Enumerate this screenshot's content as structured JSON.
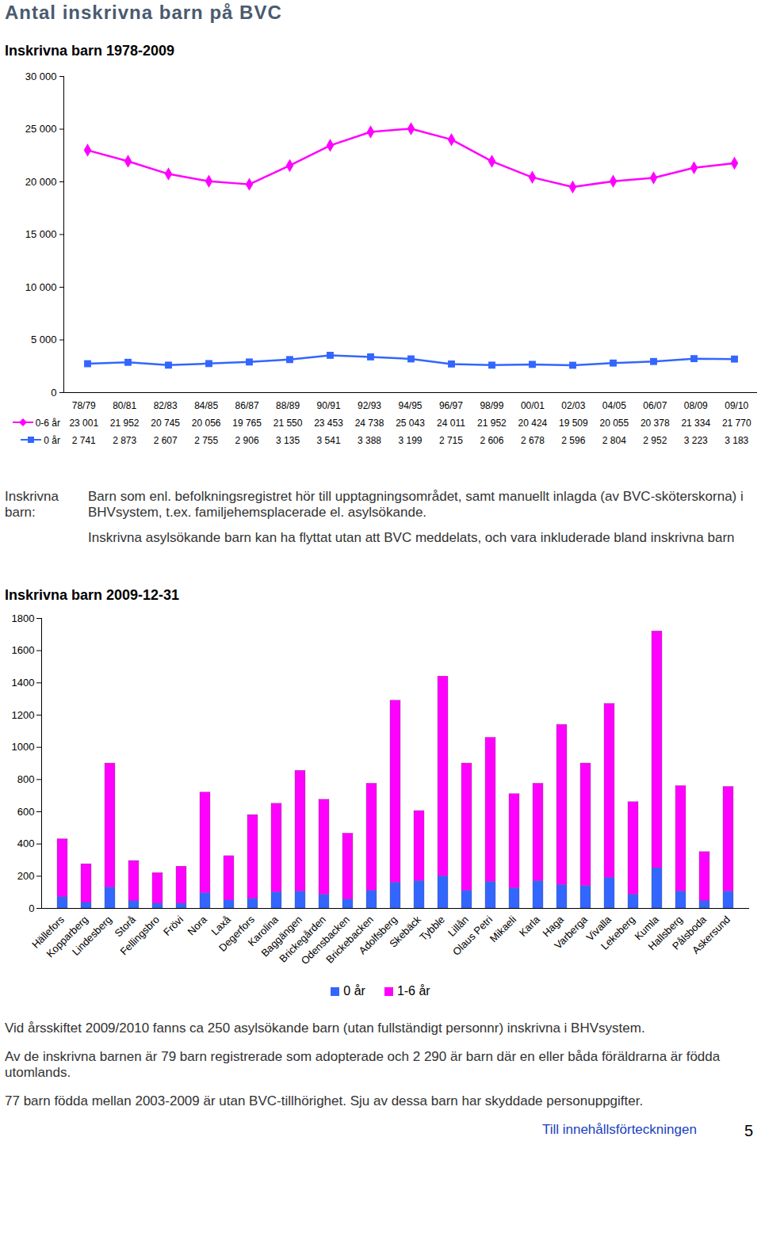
{
  "page_title": "Antal inskrivna barn på BVC",
  "chart_data": [
    {
      "type": "line",
      "title": "Inskrivna barn 1978-2009",
      "categories": [
        "78/79",
        "80/81",
        "82/83",
        "84/85",
        "86/87",
        "88/89",
        "90/91",
        "92/93",
        "94/95",
        "96/97",
        "98/99",
        "00/01",
        "02/03",
        "04/05",
        "06/07",
        "08/09",
        "09/10"
      ],
      "series": [
        {
          "name": "0-6 år",
          "color": "#ff00ff",
          "marker": "diamond",
          "values": [
            23001,
            21952,
            20745,
            20056,
            19765,
            21550,
            23453,
            24738,
            25043,
            24011,
            21952,
            20424,
            19509,
            20055,
            20378,
            21334,
            21770
          ],
          "value_labels": [
            "23 001",
            "21 952",
            "20 745",
            "20 056",
            "19 765",
            "21 550",
            "23 453",
            "24 738",
            "25 043",
            "24 011",
            "21 952",
            "20 424",
            "19 509",
            "20 055",
            "20 378",
            "21 334",
            "21 770"
          ]
        },
        {
          "name": "0 år",
          "color": "#3366ff",
          "marker": "square",
          "values": [
            2741,
            2873,
            2607,
            2755,
            2906,
            3135,
            3541,
            3388,
            3199,
            2715,
            2606,
            2678,
            2596,
            2804,
            2952,
            3223,
            3183
          ],
          "value_labels": [
            "2 741",
            "2 873",
            "2 607",
            "2 755",
            "2 906",
            "3 135",
            "3 541",
            "3 388",
            "3 199",
            "2 715",
            "2 606",
            "2 678",
            "2 596",
            "2 804",
            "2 952",
            "3 223",
            "3 183"
          ]
        }
      ],
      "ylim": [
        0,
        30000
      ],
      "yticks": [
        0,
        {
          "value": 5000,
          "label": "5 000"
        },
        {
          "value": 10000,
          "label": "10 000"
        },
        {
          "value": 15000,
          "label": "15 000"
        },
        {
          "value": 20000,
          "label": "20 000"
        },
        {
          "value": 25000,
          "label": "25 000"
        },
        {
          "value": 30000,
          "label": "30 000"
        }
      ]
    },
    {
      "type": "bar",
      "stacked": true,
      "title": "Inskrivna  barn 2009-12-31",
      "legend": "bottom",
      "categories": [
        "Hällefors",
        "Kopparberg",
        "Lindesberg",
        "Storå",
        "Fellingsbro",
        "Frövi",
        "Nora",
        "Laxå",
        "Degerfors",
        "Karolina",
        "Baggängen",
        "Brickegården",
        "Odensbacken",
        "Brickebacken",
        "Adolfsberg",
        "Skebäck",
        "Tybble",
        "Lillån",
        "Olaus Petri",
        "Mikaeli",
        "Karla",
        "Haga",
        "Varberga",
        "Vivalla",
        "Lekeberg",
        "Kumla",
        "Hallsberg",
        "Pålsboda",
        "Askersund"
      ],
      "series": [
        {
          "name": "0 år",
          "color": "#3366ff",
          "values": [
            70,
            35,
            130,
            45,
            30,
            30,
            95,
            50,
            60,
            100,
            105,
            85,
            55,
            110,
            160,
            170,
            200,
            110,
            165,
            125,
            170,
            145,
            140,
            190,
            85,
            250,
            105,
            45,
            105
          ]
        },
        {
          "name": "1-6 år",
          "color": "#ff00ff",
          "values": [
            360,
            240,
            770,
            250,
            190,
            230,
            625,
            275,
            520,
            550,
            750,
            590,
            410,
            665,
            1130,
            435,
            1240,
            790,
            895,
            585,
            605,
            995,
            760,
            1080,
            575,
            1470,
            655,
            305,
            650
          ]
        }
      ],
      "ylim": [
        0,
        1800
      ],
      "yticks": [
        0,
        200,
        400,
        600,
        800,
        1000,
        1200,
        1400,
        1600,
        1800
      ]
    }
  ],
  "definition": {
    "label": "Inskrivna barn:",
    "paragraphs": [
      "Barn som enl. befolkningsregistret hör till upptagningsområdet, samt manuellt inlagda (av BVC-sköterskorna) i BHVsystem, t.ex. familjehemsplacerade el. asylsökande.",
      "Inskrivna asylsökande barn kan ha flyttat utan att BVC meddelats, och vara inkluderade bland inskrivna barn"
    ]
  },
  "notes": [
    "Vid årsskiftet 2009/2010 fanns ca 250 asylsökande barn (utan fullständigt personnr) inskrivna i BHVsystem.",
    "Av de inskrivna barnen är 79 barn registrerade som adopterade och 2 290 är barn där en eller båda föräldrarna är födda utomlands.",
    "77 barn födda mellan 2003-2009 är utan BVC-tillhörighet. Sju av dessa barn har skyddade personuppgifter."
  ],
  "footer": {
    "link": "Till innehållsförteckningen",
    "page": "5"
  }
}
